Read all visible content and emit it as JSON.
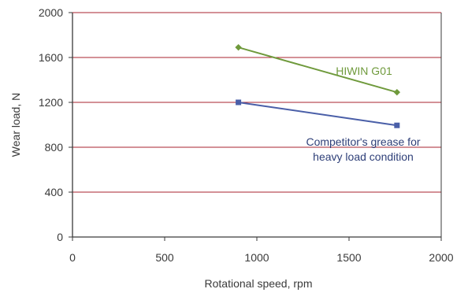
{
  "chart_data": {
    "type": "line",
    "xlabel": "Rotational speed, rpm",
    "ylabel": "Wear load, N",
    "xlim": [
      0,
      2000
    ],
    "ylim": [
      0,
      2000
    ],
    "xticks": [
      0,
      500,
      1000,
      1500,
      2000
    ],
    "yticks": [
      0,
      400,
      800,
      1200,
      1600,
      2000
    ],
    "grid": "horizontal",
    "series": [
      {
        "name": "HIWIN G01",
        "color": "#6f9a3c",
        "marker": "diamond",
        "x": [
          900,
          1760
        ],
        "y": [
          1690,
          1290
        ]
      },
      {
        "name": "Competitor's grease for heavy load condition",
        "color": "#4a5fa8",
        "marker": "square",
        "x": [
          900,
          1760
        ],
        "y": [
          1200,
          995
        ]
      }
    ],
    "annotations": [
      {
        "lines": [
          "HIWIN G01"
        ],
        "color": "#6f9a3c"
      },
      {
        "lines": [
          "Competitor's grease for",
          "heavy load condition"
        ],
        "color": "#2e3f78"
      }
    ],
    "colors": {
      "grid": "#a8232f",
      "axis": "#3a3a3a"
    }
  }
}
